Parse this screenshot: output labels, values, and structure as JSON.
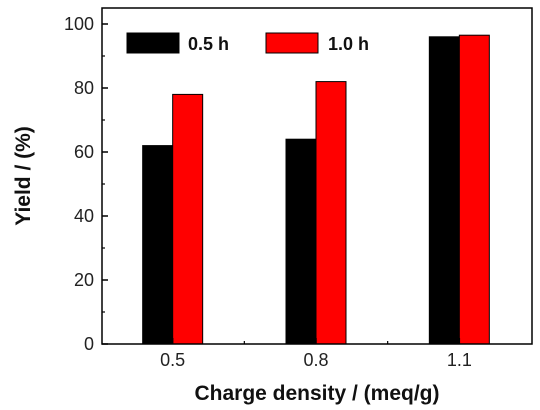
{
  "chart_data": {
    "type": "bar",
    "categories": [
      "0.5",
      "0.8",
      "1.1"
    ],
    "series": [
      {
        "name": "0.5 h",
        "values": [
          62,
          64,
          96
        ],
        "color": "#000000"
      },
      {
        "name": "1.0 h",
        "values": [
          78,
          82,
          96.5
        ],
        "color": "#ff0000"
      }
    ],
    "xlabel": "Charge density / (meq/g)",
    "ylabel": "Yield / (%)",
    "ylim": [
      0,
      105
    ],
    "yticks": [
      0,
      20,
      40,
      60,
      80,
      100
    ],
    "grid": false,
    "legend_position": "top"
  }
}
